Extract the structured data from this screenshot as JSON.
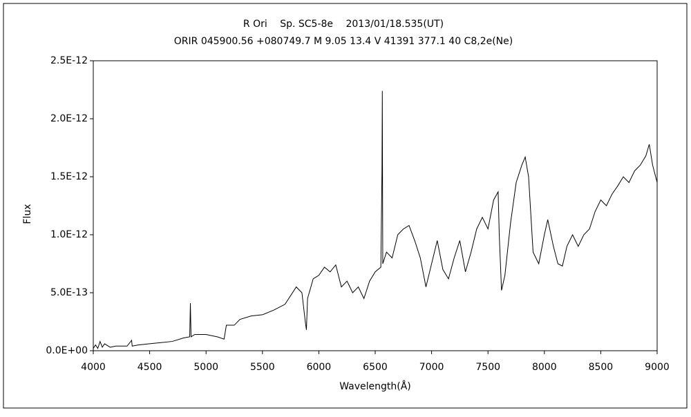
{
  "chart_data": {
    "type": "line",
    "title": "R Ori　 Sp. SC5-8e　 2013/01/18.535(UT)",
    "subtitle": "ORIR 045900.56 +080749.7 M 9.05 13.4 V 41391 377.1  40 C8,2e(Ne)",
    "xlabel": "Wavelength(Å)",
    "ylabel": "Flux",
    "xlim": [
      4000,
      9000
    ],
    "xticks": [
      4000,
      4500,
      5000,
      5500,
      6000,
      6500,
      7000,
      7500,
      8000,
      8500,
      9000
    ],
    "ylim": [
      0,
      2.5e-12
    ],
    "yticks": [
      {
        "value": 0,
        "label": "0.0E+00"
      },
      {
        "value": 5e-13,
        "label": "5.0E-13"
      },
      {
        "value": 1e-12,
        "label": "1.0E-12"
      },
      {
        "value": 1.5e-12,
        "label": "1.5E-12"
      },
      {
        "value": 2e-12,
        "label": "2.0E-12"
      },
      {
        "value": 2.5e-12,
        "label": "2.5E-12"
      }
    ],
    "grid": false,
    "series": [
      {
        "color": "#000000",
        "x": [
          4000,
          4020,
          4040,
          4060,
          4080,
          4100,
          4150,
          4200,
          4300,
          4340,
          4345,
          4400,
          4500,
          4600,
          4700,
          4800,
          4855,
          4861,
          4867,
          4900,
          5000,
          5100,
          5160,
          5180,
          5250,
          5300,
          5400,
          5500,
          5600,
          5700,
          5800,
          5850,
          5880,
          5890,
          5900,
          5950,
          6000,
          6050,
          6100,
          6150,
          6200,
          6250,
          6300,
          6350,
          6400,
          6450,
          6500,
          6550,
          6560,
          6563,
          6567,
          6600,
          6650,
          6700,
          6750,
          6800,
          6850,
          6900,
          6950,
          7000,
          7050,
          7100,
          7150,
          7200,
          7250,
          7300,
          7350,
          7400,
          7450,
          7500,
          7550,
          7590,
          7600,
          7620,
          7650,
          7700,
          7750,
          7800,
          7830,
          7860,
          7900,
          7950,
          8000,
          8030,
          8080,
          8120,
          8160,
          8200,
          8250,
          8300,
          8350,
          8400,
          8450,
          8500,
          8550,
          8600,
          8650,
          8700,
          8750,
          8800,
          8850,
          8900,
          8930,
          8960,
          9000
        ],
        "values": [
          2e-14,
          5e-14,
          2e-14,
          8e-14,
          3e-14,
          6e-14,
          3e-14,
          4e-14,
          4e-14,
          9e-14,
          4e-14,
          5e-14,
          6e-14,
          7e-14,
          8e-14,
          1.1e-13,
          1.2e-13,
          4.1e-13,
          1.2e-13,
          1.4e-13,
          1.4e-13,
          1.2e-13,
          1e-13,
          2.2e-13,
          2.2e-13,
          2.7e-13,
          3e-13,
          3.1e-13,
          3.5e-13,
          4e-13,
          5.5e-13,
          5e-13,
          2.5e-13,
          1.8e-13,
          4.5e-13,
          6.2e-13,
          6.5e-13,
          7.2e-13,
          6.8e-13,
          7.4e-13,
          5.5e-13,
          6e-13,
          5e-13,
          5.5e-13,
          4.5e-13,
          6e-13,
          6.8e-13,
          7.2e-13,
          1.55e-12,
          2.24e-12,
          7.5e-13,
          8.5e-13,
          8e-13,
          1e-12,
          1.05e-12,
          1.08e-12,
          9.5e-13,
          8e-13,
          5.5e-13,
          7.5e-13,
          9.5e-13,
          7e-13,
          6.2e-13,
          8e-13,
          9.5e-13,
          6.8e-13,
          8.5e-13,
          1.05e-12,
          1.15e-12,
          1.05e-12,
          1.3e-12,
          1.37e-12,
          1e-12,
          5.2e-13,
          6.5e-13,
          1.1e-12,
          1.45e-12,
          1.6e-12,
          1.67e-12,
          1.5e-12,
          8.5e-13,
          7.5e-13,
          1e-12,
          1.13e-12,
          9e-13,
          7.5e-13,
          7.3e-13,
          9e-13,
          1e-12,
          9e-13,
          1e-12,
          1.05e-12,
          1.2e-12,
          1.3e-12,
          1.25e-12,
          1.35e-12,
          1.42e-12,
          1.5e-12,
          1.45e-12,
          1.55e-12,
          1.6e-12,
          1.68e-12,
          1.78e-12,
          1.6e-12,
          1.45e-12
        ]
      }
    ]
  }
}
